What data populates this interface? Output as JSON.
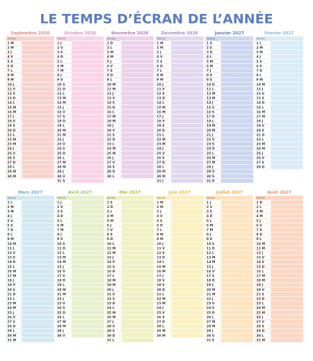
{
  "header": {
    "title": "LE TEMPS D’ÉCRAN DE L’ANNÉE"
  },
  "months": [
    {
      "name": "Septembre 2026",
      "column": "Heures",
      "days": [
        "1 M",
        "2 M",
        "3 J",
        "4 V",
        "5 S",
        "6 D",
        "7 L",
        "8 M",
        "9 M",
        "10 J",
        "11 V",
        "12 S",
        "13 D",
        "14 L",
        "15 M",
        "16 M",
        "17 J",
        "18 V",
        "19 S",
        "20 D",
        "21 L",
        "22 M",
        "23 M",
        "24 J",
        "25 V",
        "26 S",
        "27 D",
        "28 L",
        "29 M",
        "30 M"
      ]
    },
    {
      "name": "Octobre 2026",
      "column": "Heures",
      "days": [
        "1 J",
        "2 V",
        "3 S",
        "4 D",
        "5 L",
        "6 M",
        "7 M",
        "8 J",
        "9 V",
        "10 S",
        "11 D",
        "12 L",
        "13 M",
        "14 M",
        "15 J",
        "16 V",
        "17 S",
        "18 D",
        "19 L",
        "20 M",
        "21 M",
        "22 J",
        "23 V",
        "24 S",
        "25 D",
        "26 L",
        "27 M",
        "28 M",
        "29 J",
        "30 V",
        "31 S"
      ]
    },
    {
      "name": "Novembre 2026",
      "column": "Heures",
      "days": [
        "1 D",
        "2 L",
        "3 M",
        "4 M",
        "5 J",
        "6 V",
        "7 S",
        "8 D",
        "9 L",
        "10 M",
        "11 M",
        "12 J",
        "13 V",
        "14 S",
        "15 D",
        "16 L",
        "17 M",
        "18 M",
        "19 J",
        "20 V",
        "21 S",
        "22 D",
        "23 L",
        "24 M",
        "25 M",
        "26 J",
        "27 V",
        "28 S",
        "29 D",
        "30 L"
      ]
    },
    {
      "name": "Décembre 2026",
      "column": "Heures",
      "days": [
        "1 M",
        "2 M",
        "3 J",
        "4 V",
        "5 S",
        "6 D",
        "7 L",
        "8 M",
        "9 M",
        "10 J",
        "11 V",
        "12 S",
        "13 D",
        "14 L",
        "15 M",
        "16 M",
        "17 J",
        "18 V",
        "19 S",
        "20 D",
        "21 L",
        "22 M",
        "23 M",
        "24 J",
        "25 V",
        "26 S",
        "27 D",
        "28 L",
        "29 M",
        "30 M",
        "31 J"
      ]
    },
    {
      "name": "Janvier 2027",
      "column": "Heures",
      "days": [
        "1 V",
        "2 S",
        "3 D",
        "4 L",
        "5 M",
        "6 M",
        "7 J",
        "8 V",
        "9 S",
        "10 D",
        "11 L",
        "12 M",
        "13 M",
        "14 J",
        "15 V",
        "16 S",
        "17 D",
        "18 L",
        "19 M",
        "20 M",
        "21 J",
        "22 V",
        "23 S",
        "24 D",
        "25 L",
        "26 M",
        "27 M",
        "28 J",
        "29 V",
        "30 S",
        "31 D"
      ]
    },
    {
      "name": "Février 2027",
      "column": "Heures",
      "days": [
        "1 L",
        "2 M",
        "3 M",
        "4 J",
        "5 V",
        "6 S",
        "7 D",
        "8 L",
        "9 M",
        "10 M",
        "11 J",
        "12 V",
        "13 S",
        "14 D",
        "15 L",
        "16 M",
        "17 M",
        "18 J",
        "19 V",
        "20 S",
        "21 D",
        "22 L",
        "23 M",
        "24 M",
        "25 J",
        "26 V",
        "27 S",
        "28 D"
      ]
    },
    {
      "name": "Mars 2027",
      "column": "Heures",
      "days": [
        "1 L",
        "2 M",
        "3 M",
        "4 J",
        "5 V",
        "6 S",
        "7 D",
        "8 L",
        "9 M",
        "10 M",
        "11 J",
        "12 V",
        "13 S",
        "14 D",
        "15 L",
        "16 M",
        "17 M",
        "18 J",
        "19 V",
        "20 S",
        "21 D",
        "22 L",
        "23 M",
        "24 M",
        "25 J",
        "26 V",
        "27 S",
        "28 D",
        "29 L",
        "30 M",
        "31 M"
      ]
    },
    {
      "name": "Avril 2027",
      "column": "Heures",
      "days": [
        "1 J",
        "2 V",
        "3 S",
        "4 D",
        "5 L",
        "6 M",
        "7 M",
        "8 J",
        "9 V",
        "10 S",
        "11 D",
        "12 L",
        "13 M",
        "14 M",
        "15 J",
        "16 V",
        "17 S",
        "18 D",
        "19 L",
        "20 M",
        "21 M",
        "22 J",
        "23 V",
        "24 S",
        "25 D",
        "26 L",
        "27 M",
        "28 M",
        "29 J",
        "30 V"
      ]
    },
    {
      "name": "Mai 2027",
      "column": "Heures",
      "days": [
        "1 S",
        "2 D",
        "3 L",
        "4 M",
        "5 M",
        "6 J",
        "7 V",
        "8 S",
        "9 D",
        "10 L",
        "11 M",
        "12 M",
        "13 J",
        "14 V",
        "15 S",
        "16 D",
        "17 L",
        "18 M",
        "19 M",
        "20 J",
        "21 V",
        "22 S",
        "23 D",
        "24 L",
        "25 M",
        "26 M",
        "27 J",
        "28 V",
        "29 S",
        "30 D",
        "31 L"
      ]
    },
    {
      "name": "Juin 2027",
      "column": "Heures",
      "days": [
        "1 M",
        "2 M",
        "3 J",
        "4 V",
        "5 S",
        "6 D",
        "7 L",
        "8 M",
        "9 M",
        "10 J",
        "11 V",
        "12 S",
        "13 D",
        "14 L",
        "15 M",
        "16 M",
        "17 J",
        "18 V",
        "19 S",
        "20 D",
        "21 L",
        "22 M",
        "23 M",
        "24 J",
        "25 V",
        "26 S",
        "27 D",
        "28 L",
        "29 M",
        "30 M"
      ]
    },
    {
      "name": "Juillet 2027",
      "column": "Heures",
      "days": [
        "1 J",
        "2 V",
        "3 S",
        "4 D",
        "5 L",
        "6 M",
        "7 M",
        "8 J",
        "9 V",
        "10 S",
        "11 D",
        "12 L",
        "13 M",
        "14 M",
        "15 J",
        "16 V",
        "17 S",
        "18 D",
        "19 L",
        "20 M",
        "21 M",
        "22 J",
        "23 V",
        "24 S",
        "25 D",
        "26 L",
        "27 M",
        "28 M",
        "29 J",
        "30 V",
        "31 S"
      ]
    },
    {
      "name": "Août 2027",
      "column": "Heures",
      "days": [
        "1 D",
        "2 L",
        "3 M",
        "4 M",
        "5 J",
        "6 V",
        "7 S",
        "8 D",
        "9 L",
        "10 M",
        "11 M",
        "12 J",
        "13 V",
        "14 S",
        "15 D",
        "16 L",
        "17 M",
        "18 M",
        "19 J",
        "20 V",
        "21 S",
        "22 D",
        "23 L",
        "24 M",
        "25 M",
        "26 J",
        "27 V",
        "28 S",
        "29 D",
        "30 L",
        "31 M"
      ]
    }
  ]
}
